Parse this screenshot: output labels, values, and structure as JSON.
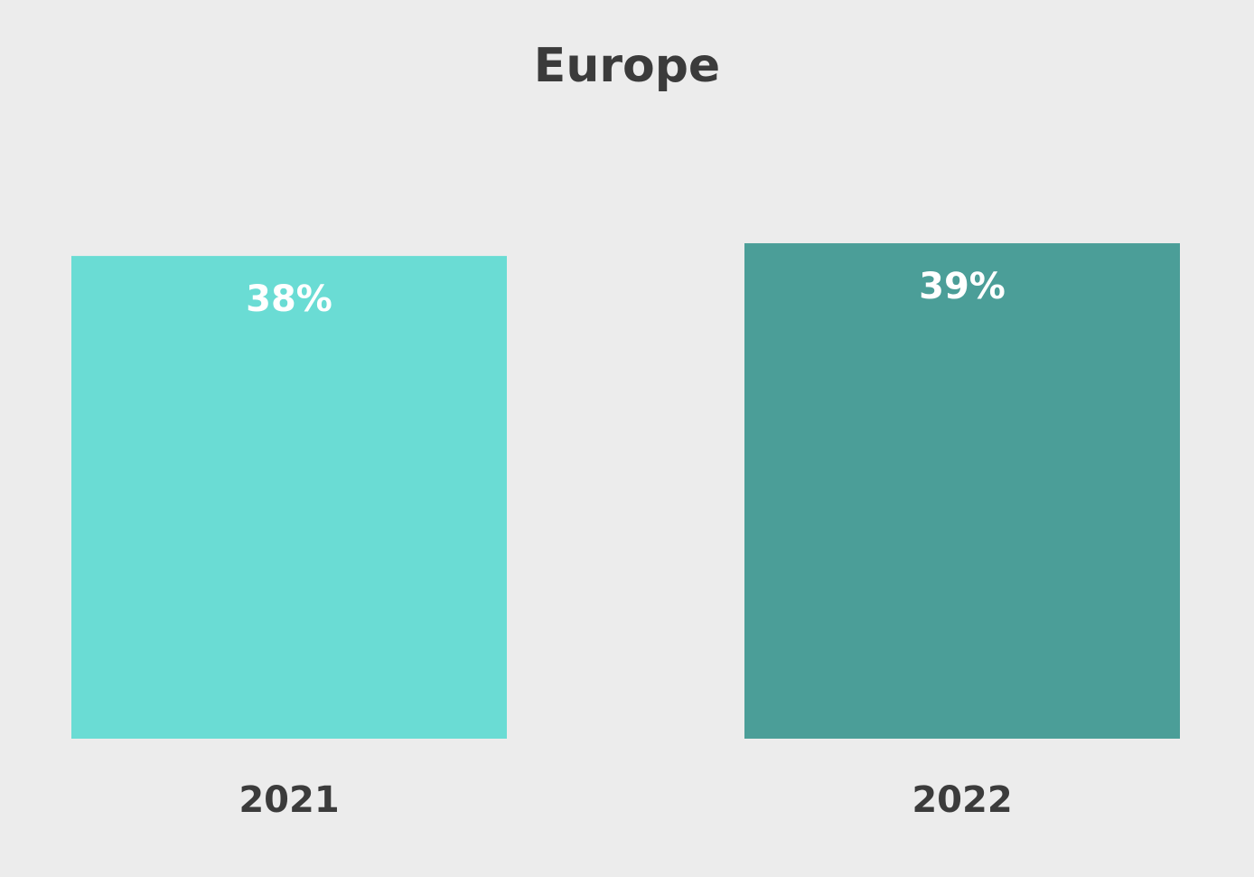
{
  "chart_data": {
    "type": "bar",
    "title": "Europe",
    "categories": [
      "2021",
      "2022"
    ],
    "values": [
      38,
      39
    ],
    "value_labels": [
      "38%",
      "39%"
    ],
    "colors": [
      "#6adcd4",
      "#4b9e98"
    ],
    "ylim": [
      0,
      40
    ]
  }
}
